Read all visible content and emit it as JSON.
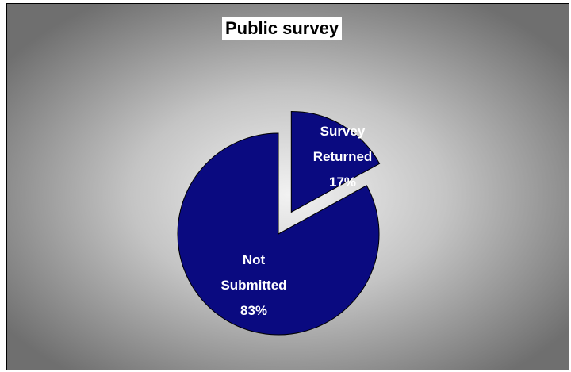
{
  "chart_data": {
    "type": "pie",
    "title": "Public survey",
    "slices": [
      {
        "label_lines": [
          "Survey",
          "Returned",
          "17%"
        ],
        "value": 17
      },
      {
        "label_lines": [
          "Not",
          "Submitted",
          "83%"
        ],
        "value": 83
      }
    ],
    "colors": {
      "slice_fill": "#0A0A80",
      "slice_stroke": "#000000"
    }
  }
}
